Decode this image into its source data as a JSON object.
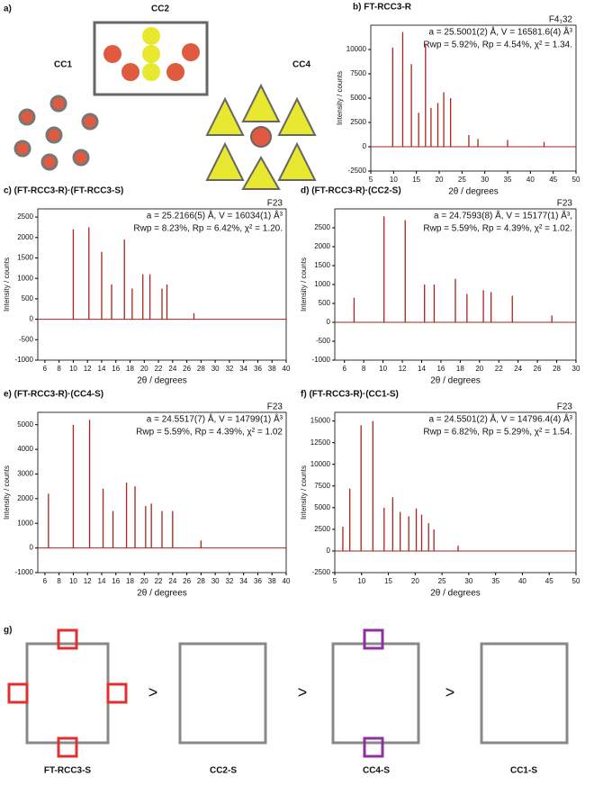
{
  "figure": {
    "panel_a": "a)",
    "panel_g": "g)",
    "cage_labels": [
      "CC1",
      "CC2",
      "CC4"
    ],
    "bottom_labels": [
      "FT-RCC3-S",
      "CC2-S",
      "CC4-S",
      "CC1-S"
    ],
    "comparisons": [
      ">",
      ">",
      ">"
    ]
  },
  "chart_data": [
    {
      "type": "stick",
      "title": "b) FT-RCC3-R",
      "annotations": [
        "F4₁32",
        "a = 25.5001(2) Å, V = 16581.6(4) Å³",
        "Rwp = 5.92%, Rp = 4.54%, χ² = 1.34."
      ],
      "xlabel": "2θ / degrees",
      "ylabel": "Intensity / counts",
      "color": "#a8241c",
      "xlim": [
        5,
        50
      ],
      "xticks": [
        5,
        10,
        15,
        20,
        25,
        30,
        35,
        40,
        45,
        50
      ],
      "ylim": [
        -2500,
        12500
      ],
      "yticks": [
        -2500,
        0,
        2500,
        5000,
        7500,
        10000
      ],
      "x": [
        9.8,
        12.0,
        13.9,
        15.5,
        17.0,
        18.2,
        19.7,
        21.0,
        22.5,
        26.5,
        28.5,
        35.0,
        43.0
      ],
      "values": [
        10200,
        11800,
        8500,
        3500,
        10500,
        4000,
        4500,
        5600,
        5000,
        1200,
        800,
        700,
        500
      ]
    },
    {
      "type": "stick",
      "title": "c) (FT-RCC3-R)·(FT-RCC3-S)",
      "annotations": [
        "F23",
        "a = 25.2166(5) Å, V = 16034(1) Å³",
        "Rwp = 8.23%, Rp = 6.42%, χ² = 1.20."
      ],
      "xlabel": "2θ / degrees",
      "ylabel": "Intensity / counts",
      "color": "#a8241c",
      "xlim": [
        5,
        40
      ],
      "xticks": [
        6,
        8,
        10,
        12,
        14,
        16,
        18,
        20,
        22,
        24,
        26,
        28,
        30,
        32,
        34,
        36,
        38,
        40
      ],
      "ylim": [
        -1000,
        2700
      ],
      "yticks": [
        -1000,
        -500,
        0,
        500,
        1000,
        1500,
        2000,
        2500
      ],
      "x": [
        10.0,
        12.2,
        14.0,
        15.4,
        17.2,
        18.3,
        19.8,
        20.8,
        22.5,
        23.2,
        27.0
      ],
      "values": [
        2200,
        2250,
        1650,
        850,
        1950,
        750,
        1100,
        1100,
        750,
        850,
        150
      ]
    },
    {
      "type": "stick",
      "title": "d) (FT-RCC3-R)·(CC2-S)",
      "annotations": [
        "F23",
        "a = 24.7593(8) Å, V = 15177(1) Å³,",
        "Rwp = 5.59%, Rp = 4.39%, χ² = 1.02."
      ],
      "xlabel": "2θ / degrees",
      "ylabel": "Intensity / counts",
      "color": "#a8241c",
      "xlim": [
        5,
        30
      ],
      "xticks": [
        6,
        8,
        10,
        12,
        14,
        16,
        18,
        20,
        22,
        24,
        26,
        28,
        30
      ],
      "ylim": [
        -1000,
        3000
      ],
      "yticks": [
        -1000,
        -500,
        0,
        500,
        1000,
        1500,
        2000,
        2500
      ],
      "x": [
        7.0,
        10.1,
        12.3,
        14.3,
        15.3,
        17.5,
        18.7,
        20.4,
        21.2,
        23.4,
        27.5
      ],
      "values": [
        650,
        2800,
        2700,
        1000,
        1000,
        1150,
        750,
        850,
        800,
        700,
        180
      ]
    },
    {
      "type": "stick",
      "title": "e) (FT-RCC3-R)·(CC4-S)",
      "annotations": [
        "F23",
        "a = 24.5517(7) Å, V = 14799(1) Å³",
        "Rwp = 5.59%, Rp = 4.39%, χ² = 1.02"
      ],
      "xlabel": "2θ / degrees",
      "ylabel": "Intensity / counts",
      "color": "#a8241c",
      "xlim": [
        5,
        40
      ],
      "xticks": [
        6,
        8,
        10,
        12,
        14,
        16,
        18,
        20,
        22,
        24,
        26,
        28,
        30,
        32,
        34,
        36,
        38,
        40
      ],
      "ylim": [
        -1000,
        5500
      ],
      "yticks": [
        -1000,
        0,
        1000,
        2000,
        3000,
        4000,
        5000
      ],
      "x": [
        6.5,
        10.0,
        12.3,
        14.2,
        15.6,
        17.5,
        18.7,
        20.2,
        21.0,
        22.5,
        24.0,
        28.0
      ],
      "values": [
        2200,
        5000,
        5200,
        2400,
        1500,
        2650,
        2500,
        1700,
        1800,
        1500,
        1500,
        300
      ]
    },
    {
      "type": "stick",
      "title": "f) (FT-RCC3-R)·(CC1-S)",
      "annotations": [
        "F23",
        "a = 24.5501(2) Å, V = 14796.4(4) Å³",
        "Rwp = 6.82%, Rp = 5.29%, χ² = 1.54."
      ],
      "xlabel": "2θ / degrees",
      "ylabel": "Intensity / counts",
      "color": "#a8241c",
      "xlim": [
        5,
        50
      ],
      "xticks": [
        5,
        10,
        15,
        20,
        25,
        30,
        35,
        40,
        45,
        50
      ],
      "ylim": [
        -2500,
        16000
      ],
      "yticks": [
        -2500,
        0,
        2500,
        5000,
        7500,
        10000,
        12500,
        15000
      ],
      "x": [
        6.5,
        7.8,
        9.9,
        12.1,
        14.2,
        15.8,
        17.2,
        18.8,
        20.2,
        21.2,
        22.5,
        23.5,
        28.0
      ],
      "values": [
        2800,
        7200,
        14500,
        15000,
        5000,
        6200,
        4500,
        4000,
        4900,
        4200,
        3200,
        2500,
        600
      ]
    }
  ]
}
